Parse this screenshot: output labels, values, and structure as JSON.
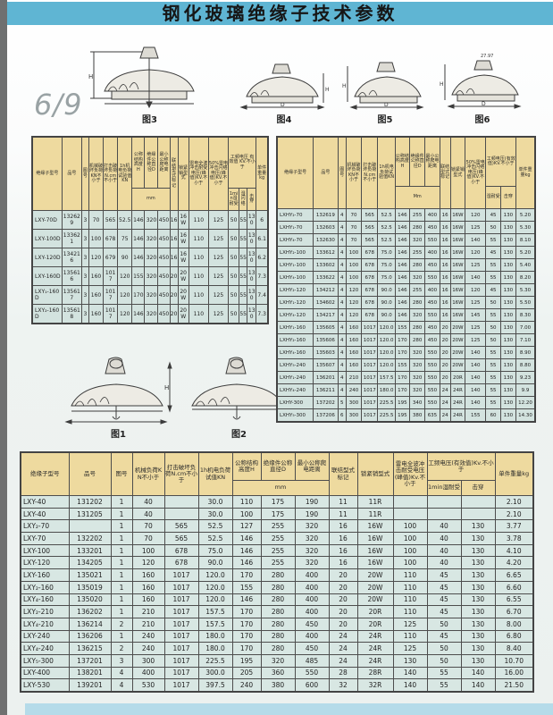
{
  "banner": {
    "title": "钢化玻璃绝缘子技术参数"
  },
  "page_number": "6/9",
  "dims": {
    "h": "H",
    "d": "D"
  },
  "figures": {
    "top": [
      {
        "label": "图3",
        "dim": ""
      },
      {
        "label": "图4",
        "dim": ""
      },
      {
        "label": "图5",
        "dim": ""
      },
      {
        "label": "图6",
        "dim": "27.97"
      }
    ],
    "mid": [
      {
        "label": "图1"
      },
      {
        "label": "图2"
      }
    ]
  },
  "left_table": {
    "h": {
      "model": "绝缘子型号",
      "pin": "品号",
      "fig": "图号",
      "mech": "机械破坏负荷KN不小于",
      "impact": "打击破坏负荷N.cm不小于",
      "test1h": "1h机电负荷试验值KN",
      "height": "公称结构高度H",
      "dia": "绝缘件公称直径D",
      "creep": "最小公称爬电距离",
      "mm": "mm",
      "conn": "联结型式标记",
      "lock": "锁紧销型式",
      "lightning": "雷电全波冲击耐受电压(峰值)KV.不小于",
      "flash50": "50%雷电冲击闪络电压(峰值)KV.不小于",
      "pf": "工频电压 有效值 KV.不小于",
      "wet1min": "1min湿耐受",
      "wetflash": "湿闪络",
      "puncture": "击穿",
      "weight": "单件重量kg"
    },
    "rows": [
      [
        "LXY-70D",
        "132629",
        "3",
        "70",
        "565",
        "52.5",
        "146",
        "320",
        "450",
        "16",
        "16W",
        "110",
        "125",
        "50",
        "55",
        "130",
        "6"
      ],
      [
        "LXY-100D",
        "133621",
        "3",
        "100",
        "678",
        "75",
        "146",
        "320",
        "450",
        "16",
        "16W",
        "110",
        "125",
        "50",
        "55",
        "130",
        "6.1"
      ],
      [
        "LXY-120D",
        "134216",
        "3",
        "120",
        "679",
        "90",
        "146",
        "320",
        "450",
        "16",
        "16W",
        "110",
        "125",
        "50",
        "55",
        "130",
        "6.2"
      ],
      [
        "LXY-160D",
        "135616",
        "3",
        "160",
        "1017",
        "120",
        "155",
        "320",
        "450",
        "20",
        "20W",
        "110",
        "125",
        "50",
        "55",
        "130",
        "7.3"
      ],
      [
        "LXY₁-160D",
        "135617",
        "3",
        "160",
        "1017",
        "120",
        "170",
        "320",
        "450",
        "20",
        "20W",
        "110",
        "125",
        "50",
        "55",
        "130",
        "7.4"
      ],
      [
        "LXY₂-160D",
        "135618",
        "3",
        "160",
        "1017",
        "120",
        "146",
        "320",
        "450",
        "20",
        "20W",
        "110",
        "125",
        "50",
        "55",
        "130",
        "7.3"
      ]
    ]
  },
  "right_table": {
    "h": {
      "model": "绝缘子型号",
      "pin": "品号",
      "fig": "图号",
      "mech": "机械破坏负荷KN不小于",
      "impact": "打击破坏负荷N.cm不小于",
      "test1h": "1h机电负荷试验值KN",
      "height": "公称结构高度H",
      "dia": "绝缘件公称直径D",
      "creep": "最小公称爬电距离",
      "mm": "Mm",
      "conn": "联结型式标记",
      "lock": "锁紧销型式",
      "flash50": "50%雷电冲击闪络电压(峰值)KV.不小于",
      "pf": "工频电压(有效值)KV.不小于",
      "wet": "湿耐受",
      "puncture": "击穿",
      "weight": "单件重量kg"
    },
    "rows": [
      [
        "LXHY₂-70",
        "132619",
        "4",
        "70",
        "565",
        "52.5",
        "146",
        "255",
        "400",
        "16",
        "16W",
        "120",
        "45",
        "130",
        "5.20"
      ],
      [
        "LXHY₁-70",
        "132603",
        "4",
        "70",
        "565",
        "52.5",
        "146",
        "280",
        "450",
        "16",
        "16W",
        "125",
        "50",
        "130",
        "5.30"
      ],
      [
        "LXHY₄-70",
        "132630",
        "4",
        "70",
        "565",
        "52.5",
        "146",
        "320",
        "550",
        "16",
        "16W",
        "140",
        "55",
        "130",
        "8.10"
      ],
      [
        "LXHY₂-100",
        "133612",
        "4",
        "100",
        "678",
        "75.0",
        "146",
        "255",
        "400",
        "16",
        "16W",
        "120",
        "45",
        "130",
        "5.20"
      ],
      [
        "LXHY₁-100",
        "133602",
        "4",
        "100",
        "678",
        "75.0",
        "146",
        "280",
        "450",
        "16",
        "16W",
        "125",
        "55",
        "130",
        "5.40"
      ],
      [
        "LXHY₄-100",
        "133622",
        "4",
        "100",
        "678",
        "75.0",
        "146",
        "320",
        "550",
        "16",
        "16W",
        "140",
        "55",
        "130",
        "8.20"
      ],
      [
        "LXHY₂-120",
        "134212",
        "4",
        "120",
        "678",
        "90.0",
        "146",
        "255",
        "400",
        "16",
        "16W",
        "120",
        "45",
        "130",
        "5.30"
      ],
      [
        "LXHY₁-120",
        "134602",
        "4",
        "120",
        "678",
        "90.0",
        "146",
        "280",
        "450",
        "16",
        "16W",
        "125",
        "50",
        "130",
        "5.50"
      ],
      [
        "LXHY₄-120",
        "134217",
        "4",
        "120",
        "678",
        "90.0",
        "146",
        "320",
        "550",
        "16",
        "16W",
        "145",
        "55",
        "130",
        "8.30"
      ],
      [
        "LXHY₁-160",
        "135605",
        "4",
        "160",
        "1017",
        "120.0",
        "155",
        "280",
        "450",
        "20",
        "20W",
        "125",
        "50",
        "130",
        "7.00"
      ],
      [
        "LXHY₂-160",
        "135606",
        "4",
        "160",
        "1017",
        "120.0",
        "170",
        "280",
        "450",
        "20",
        "20W",
        "125",
        "50",
        "130",
        "7.10"
      ],
      [
        "LXHY₄-160",
        "135603",
        "4",
        "160",
        "1017",
        "120.0",
        "170",
        "320",
        "550",
        "20",
        "20W",
        "140",
        "55",
        "130",
        "8.90"
      ],
      [
        "LXHY₅-240",
        "135607",
        "4",
        "160",
        "1017",
        "120.0",
        "155",
        "320",
        "550",
        "20",
        "20W",
        "140",
        "55",
        "130",
        "8.80"
      ],
      [
        "LXHY₁-240",
        "136201",
        "4",
        "210",
        "1017",
        "157.5",
        "170",
        "320",
        "550",
        "20",
        "20R",
        "140",
        "55",
        "130",
        "9.23"
      ],
      [
        "LXHY₄-240",
        "136211",
        "4",
        "240",
        "1017",
        "180.0",
        "170",
        "320",
        "550",
        "24",
        "24R",
        "140",
        "55",
        "130",
        "9.9"
      ],
      [
        "LXHY-300",
        "137202",
        "5",
        "300",
        "1017",
        "225.5",
        "195",
        "340",
        "550",
        "24",
        "24R",
        "140",
        "55",
        "130",
        "12.20"
      ],
      [
        "LXHY₅-300",
        "137206",
        "6",
        "300",
        "1017",
        "225.5",
        "195",
        "380",
        "635",
        "24",
        "24R",
        "155",
        "60",
        "130",
        "14.30"
      ]
    ]
  },
  "bottom_table": {
    "h": {
      "model": "绝缘子型号",
      "pin": "品号",
      "fig": "图号",
      "mech": "机械负荷KN不小于",
      "impact": "打击破坏负荷N.cm不小于",
      "test1h": "1h机电负荷试值KN",
      "height": "公称结构高度H",
      "dia": "绝缘件公称直径D",
      "creep": "最小公称爬电距离",
      "mm": "mm",
      "conn": "联结型式标记",
      "lock": "锁紧销型式",
      "lightning": "雷电全波冲击耐受电压(峰值)Kv.不小于",
      "pf": "工频电压(有效值)Kv.不小于",
      "wet1min": "1min湿耐受",
      "puncture": "击穿",
      "weight": "单件重量kg"
    },
    "rows": [
      [
        "LXY-40",
        "131202",
        "1",
        "40",
        "",
        "30.0",
        "110",
        "175",
        "190",
        "11",
        "11R",
        "",
        "",
        "",
        "2.10"
      ],
      [
        "LXY-40",
        "131205",
        "1",
        "40",
        "",
        "30.0",
        "100",
        "175",
        "190",
        "11",
        "11R",
        "",
        "",
        "",
        "2.10"
      ],
      [
        "LXY₂-70",
        "",
        "1",
        "70",
        "565",
        "52.5",
        "127",
        "255",
        "320",
        "16",
        "16W",
        "100",
        "40",
        "130",
        "3.77"
      ],
      [
        "LXY-70",
        "132202",
        "1",
        "70",
        "565",
        "52.5",
        "146",
        "255",
        "320",
        "16",
        "16W",
        "100",
        "40",
        "130",
        "3.78"
      ],
      [
        "LXY-100",
        "133201",
        "1",
        "100",
        "678",
        "75.0",
        "146",
        "255",
        "320",
        "16",
        "16W",
        "100",
        "40",
        "130",
        "4.10"
      ],
      [
        "LXY-120",
        "134205",
        "1",
        "120",
        "678",
        "90.0",
        "146",
        "255",
        "320",
        "16",
        "16W",
        "100",
        "40",
        "130",
        "4.20"
      ],
      [
        "LXY-160",
        "135021",
        "1",
        "160",
        "1017",
        "120.0",
        "170",
        "280",
        "400",
        "20",
        "20W",
        "110",
        "45",
        "130",
        "6.65"
      ],
      [
        "LXY₂-160",
        "135019",
        "1",
        "160",
        "1017",
        "120.0",
        "155",
        "280",
        "400",
        "20",
        "20W",
        "110",
        "45",
        "130",
        "6.60"
      ],
      [
        "LXY₄-160",
        "135020",
        "1",
        "160",
        "1017",
        "120.0",
        "146",
        "280",
        "400",
        "20",
        "20W",
        "110",
        "45",
        "130",
        "6.55"
      ],
      [
        "LXY₂-210",
        "136202",
        "1",
        "210",
        "1017",
        "157.5",
        "170",
        "280",
        "400",
        "20",
        "20R",
        "110",
        "45",
        "130",
        "6.70"
      ],
      [
        "LXY₄-210",
        "136214",
        "2",
        "210",
        "1017",
        "157.5",
        "170",
        "280",
        "450",
        "20",
        "20R",
        "125",
        "50",
        "130",
        "8.00"
      ],
      [
        "LXY-240",
        "136206",
        "1",
        "240",
        "1017",
        "180.0",
        "170",
        "280",
        "400",
        "24",
        "24R",
        "110",
        "45",
        "130",
        "6.80"
      ],
      [
        "LXY₄-240",
        "136215",
        "2",
        "240",
        "1017",
        "180.0",
        "170",
        "280",
        "450",
        "24",
        "24R",
        "125",
        "50",
        "130",
        "8.40"
      ],
      [
        "LXY₅-300",
        "137201",
        "3",
        "300",
        "1017",
        "225.5",
        "195",
        "320",
        "485",
        "24",
        "24R",
        "130",
        "50",
        "130",
        "10.70"
      ],
      [
        "LXY-400",
        "138201",
        "4",
        "400",
        "1017",
        "300.0",
        "205",
        "360",
        "550",
        "28",
        "28R",
        "140",
        "55",
        "140",
        "16.00"
      ],
      [
        "LXY-530",
        "139201",
        "4",
        "530",
        "1017",
        "397.5",
        "240",
        "380",
        "600",
        "32",
        "32R",
        "140",
        "55",
        "140",
        "21.50"
      ]
    ]
  }
}
